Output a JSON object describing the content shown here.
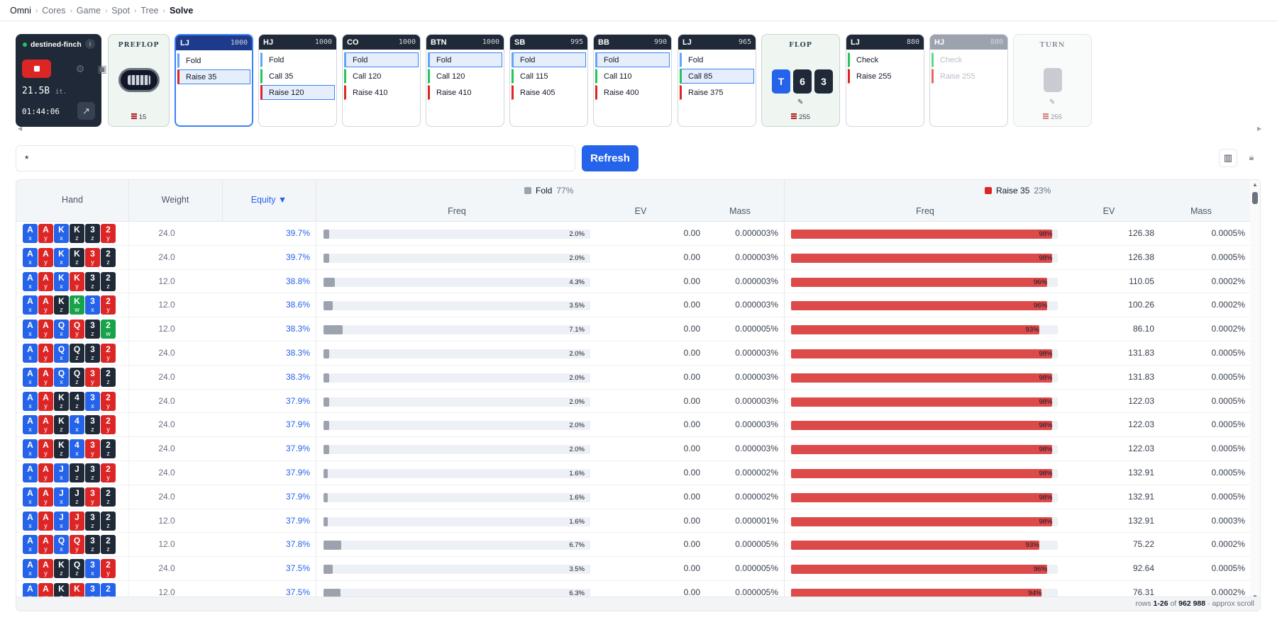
{
  "breadcrumb": [
    "Omni",
    "Cores",
    "Game",
    "Spot",
    "Tree",
    "Solve"
  ],
  "solver": {
    "name": "destined-finch",
    "speed": "21.5B",
    "speed_unit": "it.",
    "timer": "01:44:06"
  },
  "streets": {
    "preflop": {
      "label": "PREFLOP",
      "pot": "15"
    },
    "flop": {
      "label": "FLOP",
      "pot": "255",
      "cards": [
        {
          "rank": "T",
          "color": "#2563eb"
        },
        {
          "rank": "6",
          "color": "#1f2937"
        },
        {
          "rank": "3",
          "color": "#1f2937"
        }
      ]
    },
    "turn": {
      "label": "TURN",
      "pot": "255"
    }
  },
  "nodes": [
    {
      "pos": "LJ",
      "stack": "1000",
      "actions": [
        "Fold",
        "Raise 35"
      ]
    },
    {
      "pos": "HJ",
      "stack": "1000",
      "actions": [
        "Fold",
        "Call 35",
        "Raise 120"
      ]
    },
    {
      "pos": "CO",
      "stack": "1000",
      "actions": [
        "Fold",
        "Call 120",
        "Raise 410"
      ]
    },
    {
      "pos": "BTN",
      "stack": "1000",
      "actions": [
        "Fold",
        "Call 120",
        "Raise 410"
      ]
    },
    {
      "pos": "SB",
      "stack": "995",
      "actions": [
        "Fold",
        "Call 115",
        "Raise 405"
      ]
    },
    {
      "pos": "BB",
      "stack": "990",
      "actions": [
        "Fold",
        "Call 110",
        "Raise 400"
      ]
    },
    {
      "pos": "LJ",
      "stack": "965",
      "actions": [
        "Fold",
        "Call 85",
        "Raise 375"
      ]
    },
    {
      "pos": "LJ",
      "stack": "880",
      "actions": [
        "Check",
        "Raise 255"
      ]
    },
    {
      "pos": "HJ",
      "stack": "880",
      "actions": [
        "Check",
        "Raise 255"
      ]
    }
  ],
  "filter": {
    "value": "*"
  },
  "refresh_label": "Refresh",
  "table": {
    "columns": {
      "hand": "Hand",
      "weight": "Weight",
      "equity": "Equity ▼"
    },
    "groups": [
      {
        "name": "Fold",
        "pct": "77%",
        "color": "#9ca3af"
      },
      {
        "name": "Raise 35",
        "pct": "23%",
        "color": "#dc2626"
      }
    ],
    "subcols": {
      "freq": "Freq",
      "ev": "EV",
      "mass": "Mass"
    },
    "rows": [
      {
        "cards": [
          "Ax",
          "Ay",
          "Kx",
          "Kz",
          "3z",
          "2y"
        ],
        "weight": "24.0",
        "equity": "39.7%",
        "fold_freq": 2.0,
        "fold_label": "2.0%",
        "fold_ev": "0.00",
        "fold_mass": "0.000003%",
        "raise_freq": 98,
        "raise_label": "98%",
        "raise_ev": "126.38",
        "raise_mass": "0.0005%"
      },
      {
        "cards": [
          "Ax",
          "Ay",
          "Kx",
          "Kz",
          "3y",
          "2z"
        ],
        "weight": "24.0",
        "equity": "39.7%",
        "fold_freq": 2.0,
        "fold_label": "2.0%",
        "fold_ev": "0.00",
        "fold_mass": "0.000003%",
        "raise_freq": 98,
        "raise_label": "98%",
        "raise_ev": "126.38",
        "raise_mass": "0.0005%"
      },
      {
        "cards": [
          "Ax",
          "Ay",
          "Kx",
          "Ky",
          "3z",
          "2z"
        ],
        "weight": "12.0",
        "equity": "38.8%",
        "fold_freq": 4.3,
        "fold_label": "4.3%",
        "fold_ev": "0.00",
        "fold_mass": "0.000003%",
        "raise_freq": 96,
        "raise_label": "96%",
        "raise_ev": "110.05",
        "raise_mass": "0.0002%"
      },
      {
        "cards": [
          "Ax",
          "Ay",
          "Kz",
          "Kw",
          "3x",
          "2y"
        ],
        "weight": "12.0",
        "equity": "38.6%",
        "fold_freq": 3.5,
        "fold_label": "3.5%",
        "fold_ev": "0.00",
        "fold_mass": "0.000003%",
        "raise_freq": 96,
        "raise_label": "96%",
        "raise_ev": "100.26",
        "raise_mass": "0.0002%"
      },
      {
        "cards": [
          "Ax",
          "Ay",
          "Qx",
          "Qy",
          "3z",
          "2w"
        ],
        "weight": "12.0",
        "equity": "38.3%",
        "fold_freq": 7.1,
        "fold_label": "7.1%",
        "fold_ev": "0.00",
        "fold_mass": "0.000005%",
        "raise_freq": 93,
        "raise_label": "93%",
        "raise_ev": "86.10",
        "raise_mass": "0.0002%"
      },
      {
        "cards": [
          "Ax",
          "Ay",
          "Qx",
          "Qz",
          "3z",
          "2y"
        ],
        "weight": "24.0",
        "equity": "38.3%",
        "fold_freq": 2.0,
        "fold_label": "2.0%",
        "fold_ev": "0.00",
        "fold_mass": "0.000003%",
        "raise_freq": 98,
        "raise_label": "98%",
        "raise_ev": "131.83",
        "raise_mass": "0.0005%"
      },
      {
        "cards": [
          "Ax",
          "Ay",
          "Qx",
          "Qz",
          "3y",
          "2z"
        ],
        "weight": "24.0",
        "equity": "38.3%",
        "fold_freq": 2.0,
        "fold_label": "2.0%",
        "fold_ev": "0.00",
        "fold_mass": "0.000003%",
        "raise_freq": 98,
        "raise_label": "98%",
        "raise_ev": "131.83",
        "raise_mass": "0.0005%"
      },
      {
        "cards": [
          "Ax",
          "Ay",
          "Kz",
          "4z",
          "3x",
          "2y"
        ],
        "weight": "24.0",
        "equity": "37.9%",
        "fold_freq": 2.0,
        "fold_label": "2.0%",
        "fold_ev": "0.00",
        "fold_mass": "0.000003%",
        "raise_freq": 98,
        "raise_label": "98%",
        "raise_ev": "122.03",
        "raise_mass": "0.0005%"
      },
      {
        "cards": [
          "Ax",
          "Ay",
          "Kz",
          "4x",
          "3z",
          "2y"
        ],
        "weight": "24.0",
        "equity": "37.9%",
        "fold_freq": 2.0,
        "fold_label": "2.0%",
        "fold_ev": "0.00",
        "fold_mass": "0.000003%",
        "raise_freq": 98,
        "raise_label": "98%",
        "raise_ev": "122.03",
        "raise_mass": "0.0005%"
      },
      {
        "cards": [
          "Ax",
          "Ay",
          "Kz",
          "4x",
          "3y",
          "2z"
        ],
        "weight": "24.0",
        "equity": "37.9%",
        "fold_freq": 2.0,
        "fold_label": "2.0%",
        "fold_ev": "0.00",
        "fold_mass": "0.000003%",
        "raise_freq": 98,
        "raise_label": "98%",
        "raise_ev": "122.03",
        "raise_mass": "0.0005%"
      },
      {
        "cards": [
          "Ax",
          "Ay",
          "Jx",
          "Jz",
          "3z",
          "2y"
        ],
        "weight": "24.0",
        "equity": "37.9%",
        "fold_freq": 1.6,
        "fold_label": "1.6%",
        "fold_ev": "0.00",
        "fold_mass": "0.000002%",
        "raise_freq": 98,
        "raise_label": "98%",
        "raise_ev": "132.91",
        "raise_mass": "0.0005%"
      },
      {
        "cards": [
          "Ax",
          "Ay",
          "Jx",
          "Jz",
          "3y",
          "2z"
        ],
        "weight": "24.0",
        "equity": "37.9%",
        "fold_freq": 1.6,
        "fold_label": "1.6%",
        "fold_ev": "0.00",
        "fold_mass": "0.000002%",
        "raise_freq": 98,
        "raise_label": "98%",
        "raise_ev": "132.91",
        "raise_mass": "0.0005%"
      },
      {
        "cards": [
          "Ax",
          "Ay",
          "Jx",
          "Jy",
          "3z",
          "2z"
        ],
        "weight": "12.0",
        "equity": "37.9%",
        "fold_freq": 1.6,
        "fold_label": "1.6%",
        "fold_ev": "0.00",
        "fold_mass": "0.000001%",
        "raise_freq": 98,
        "raise_label": "98%",
        "raise_ev": "132.91",
        "raise_mass": "0.0003%"
      },
      {
        "cards": [
          "Ax",
          "Ay",
          "Qx",
          "Qy",
          "3z",
          "2z"
        ],
        "weight": "12.0",
        "equity": "37.8%",
        "fold_freq": 6.7,
        "fold_label": "6.7%",
        "fold_ev": "0.00",
        "fold_mass": "0.000005%",
        "raise_freq": 93,
        "raise_label": "93%",
        "raise_ev": "75.22",
        "raise_mass": "0.0002%"
      },
      {
        "cards": [
          "Ax",
          "Ay",
          "Kz",
          "Qz",
          "3x",
          "2y"
        ],
        "weight": "24.0",
        "equity": "37.5%",
        "fold_freq": 3.5,
        "fold_label": "3.5%",
        "fold_ev": "0.00",
        "fold_mass": "0.000005%",
        "raise_freq": 96,
        "raise_label": "96%",
        "raise_ev": "92.64",
        "raise_mass": "0.0005%"
      },
      {
        "cards": [
          "Ax",
          "Ay",
          "Kz",
          "Ky",
          "3x",
          "2x"
        ],
        "weight": "12.0",
        "equity": "37.5%",
        "fold_freq": 6.3,
        "fold_label": "6.3%",
        "fold_ev": "0.00",
        "fold_mass": "0.000005%",
        "raise_freq": 94,
        "raise_label": "94%",
        "raise_ev": "76.31",
        "raise_mass": "0.0002%"
      }
    ],
    "footer": {
      "prefix": "rows",
      "range": "1-26",
      "of": "of",
      "total": "962 988",
      "suffix": "· approx scroll"
    }
  }
}
